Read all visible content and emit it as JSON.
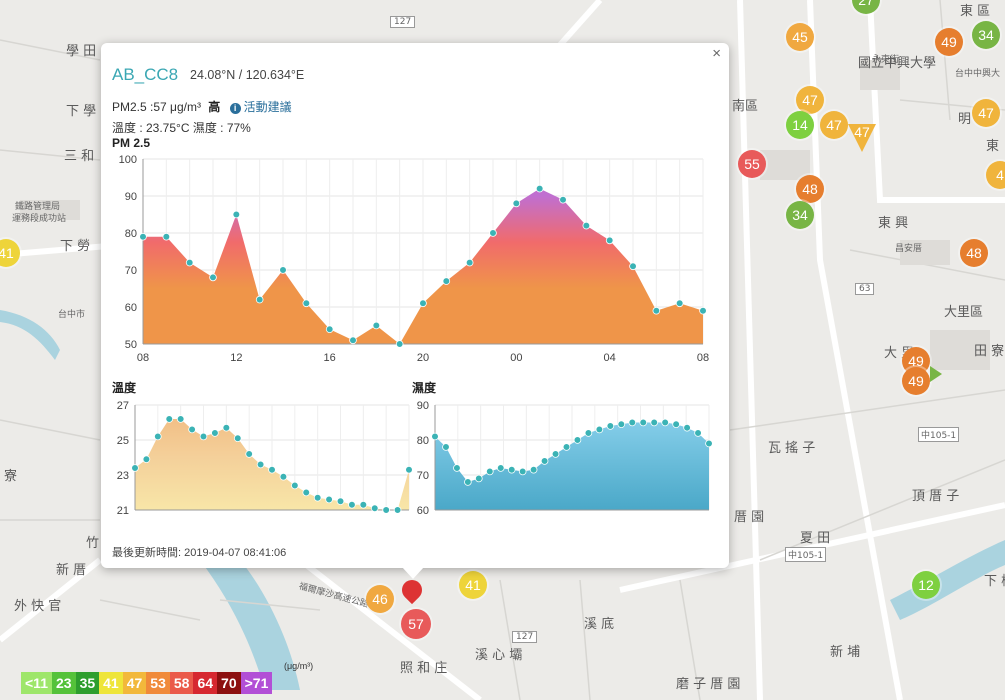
{
  "map_labels": [
    {
      "text": "學 田",
      "name": "place-xuetian"
    },
    {
      "text": "下 學",
      "name": "place-xiaxue"
    },
    {
      "text": "三 和",
      "name": "place-sanhe"
    },
    {
      "text": "下 勞",
      "name": "place-xialao"
    },
    {
      "text": "台中市",
      "name": "place-taichung"
    },
    {
      "text": "寮",
      "name": "place-liao"
    },
    {
      "text": "竹",
      "name": "place-zhu"
    },
    {
      "text": "新 厝",
      "name": "place-xincuo"
    },
    {
      "text": "外 快 官",
      "name": "place-waikuaiguan"
    },
    {
      "text": "南區",
      "name": "place-nanqu"
    },
    {
      "text": "東 興",
      "name": "place-dongxing"
    },
    {
      "text": "大里區",
      "name": "place-daliqu"
    },
    {
      "text": "大 里",
      "name": "place-dali"
    },
    {
      "text": "田 寮",
      "name": "place-tianliao"
    },
    {
      "text": "瓦 搖 子",
      "name": "place-wayaozi"
    },
    {
      "text": "頂 厝 子",
      "name": "place-dingcuozi"
    },
    {
      "text": "厝 園",
      "name": "place-cuoyuan"
    },
    {
      "text": "夏 田",
      "name": "place-xiatian"
    },
    {
      "text": "溪 底",
      "name": "place-xidi"
    },
    {
      "text": "溪 心 壩",
      "name": "place-xixinba"
    },
    {
      "text": "照 和 庄",
      "name": "place-zhaohezhuang"
    },
    {
      "text": "新 埔",
      "name": "place-xinpu"
    },
    {
      "text": "磨 子 厝 園",
      "name": "place-mozicuoyuan"
    },
    {
      "text": "下 橋",
      "name": "place-xiaqiao"
    },
    {
      "text": "國立中興大學",
      "name": "place-nchu"
    },
    {
      "text": "永東街",
      "name": "place-yongdong"
    },
    {
      "text": "明",
      "name": "place-ming"
    },
    {
      "text": "東",
      "name": "place-dong"
    },
    {
      "text": "昌安厝",
      "name": "place-changan"
    },
    {
      "text": "東 區",
      "name": "place-dongqu"
    },
    {
      "text": "福爾摩沙高速公路",
      "name": "road-formosa-fwy"
    },
    {
      "text": "鐵路管理局",
      "name": "place-railway-bureau"
    },
    {
      "text": "運務段成功站",
      "name": "place-chenggong-station"
    },
    {
      "text": "台中中興大",
      "name": "place-taichung-zx"
    },
    {
      "text": "中105-1",
      "name": "road-zhong105-1"
    },
    {
      "text": "中105-1",
      "name": "road-zhong105-1b"
    },
    {
      "text": "127",
      "name": "road-127-top"
    },
    {
      "text": "127",
      "name": "road-127-bottom"
    },
    {
      "text": "63",
      "name": "road-63"
    }
  ],
  "markers": [
    {
      "value": "45",
      "color": "#f0a840"
    },
    {
      "value": "34",
      "color": "#78b545"
    },
    {
      "value": "49",
      "color": "#e67e2e"
    },
    {
      "value": "47",
      "color": "#f0b43c"
    },
    {
      "value": "14",
      "color": "#7ed040"
    },
    {
      "value": "47",
      "color": "#f0b43c"
    },
    {
      "value": "47",
      "color": "#f0b43c"
    },
    {
      "value": "47",
      "color": "#f0b43c"
    },
    {
      "value": "55",
      "color": "#e85a5a"
    },
    {
      "value": "48",
      "color": "#e67e2e"
    },
    {
      "value": "34",
      "color": "#78b545"
    },
    {
      "value": "48",
      "color": "#e67e2e"
    },
    {
      "value": "49",
      "color": "#e67e2e"
    },
    {
      "value": "49",
      "color": "#e67e2e"
    },
    {
      "value": "41",
      "color": "#eed43a"
    },
    {
      "value": "41",
      "color": "#eed43a"
    },
    {
      "value": "46",
      "color": "#f0a840"
    },
    {
      "value": "57",
      "color": "#e85a5a"
    },
    {
      "value": "12",
      "color": "#7ed040"
    },
    {
      "value": "4",
      "color": "#f0b43c"
    },
    {
      "value": "27",
      "color": "#78b545"
    }
  ],
  "popup": {
    "station": "AB_CC8",
    "coords": "24.08°N / 120.634°E",
    "pm_text": "PM2.5 :57 μg/m³",
    "pm_level": "高",
    "advice": "活動建議",
    "advice_icon": "info-icon",
    "env_text": "溫度 : 23.75°C 濕度 : 77%",
    "close": "×",
    "updated": "最後更新時間: 2019-04-07 08:41:06"
  },
  "chart_data": [
    {
      "type": "area",
      "title": "PM 2.5",
      "x_tick_labels": [
        "08",
        "12",
        "16",
        "20",
        "00",
        "04",
        "08"
      ],
      "ylim": [
        50,
        100
      ],
      "y_ticks": [
        50,
        60,
        70,
        80,
        90,
        100
      ],
      "grid": true,
      "x": [
        8,
        9,
        10,
        11,
        12,
        13,
        14,
        15,
        16,
        17,
        18,
        19,
        20,
        21,
        22,
        23,
        24,
        25,
        26,
        27,
        28,
        29,
        30,
        31,
        32
      ],
      "series": [
        {
          "values": [
            79,
            79,
            72,
            68,
            85,
            62,
            70,
            61,
            54,
            51,
            55,
            50,
            61,
            67,
            72,
            80,
            88,
            92,
            89,
            82,
            78,
            71,
            59,
            61,
            59
          ]
        }
      ],
      "color_scale": [
        "#ef9549",
        "#f16b6b",
        "#c06fd0"
      ]
    },
    {
      "type": "area",
      "title": "溫度",
      "ylim": [
        21,
        27
      ],
      "y_ticks": [
        21,
        23,
        25,
        27
      ],
      "grid": true,
      "x": [
        8,
        8.5,
        9,
        9.5,
        10,
        10.5,
        11,
        11.5,
        12,
        12.5,
        13,
        13.5,
        14,
        14.5,
        15,
        15.5,
        16,
        16.5,
        17,
        17.5,
        18,
        18.5,
        19,
        19.5,
        20
      ],
      "series": [
        {
          "values": [
            23.4,
            23.9,
            25.2,
            26.2,
            26.2,
            25.6,
            25.2,
            25.4,
            25.7,
            25.1,
            24.2,
            23.6,
            23.3,
            22.9,
            22.4,
            22.0,
            21.7,
            21.6,
            21.5,
            21.3,
            21.3,
            21.1,
            21.0,
            21.0,
            23.3
          ]
        }
      ],
      "color": "#f6d9a0"
    },
    {
      "type": "area",
      "title": "濕度",
      "ylim": [
        60,
        90
      ],
      "y_ticks": [
        60,
        70,
        80,
        90
      ],
      "grid": true,
      "x": [
        0,
        1,
        2,
        3,
        4,
        5,
        6,
        7,
        8,
        9,
        10,
        11,
        12,
        13,
        14,
        15,
        16,
        17,
        18,
        19,
        20,
        21,
        22,
        23,
        24,
        25
      ],
      "series": [
        {
          "values": [
            81,
            78,
            72,
            68,
            69,
            71,
            72,
            71.5,
            71,
            71.5,
            74,
            76,
            78,
            80,
            82,
            83,
            84,
            84.5,
            85,
            85,
            85,
            85,
            84.5,
            83.5,
            82,
            79
          ]
        }
      ],
      "color": "#6ec3e0"
    }
  ],
  "legend": {
    "unit": "(μg/m³)",
    "items": [
      {
        "label": "<11",
        "color": "#9ee66a"
      },
      {
        "label": "23",
        "color": "#55c23a"
      },
      {
        "label": "35",
        "color": "#2e9e2e"
      },
      {
        "label": "41",
        "color": "#eee53a"
      },
      {
        "label": "47",
        "color": "#f2b83b"
      },
      {
        "label": "53",
        "color": "#f08a3a"
      },
      {
        "label": "58",
        "color": "#ea5a4a"
      },
      {
        "label": "64",
        "color": "#d62830"
      },
      {
        "label": "70",
        "color": "#8c1010"
      },
      {
        "label": ">71",
        "color": "#b24fd6"
      }
    ]
  }
}
